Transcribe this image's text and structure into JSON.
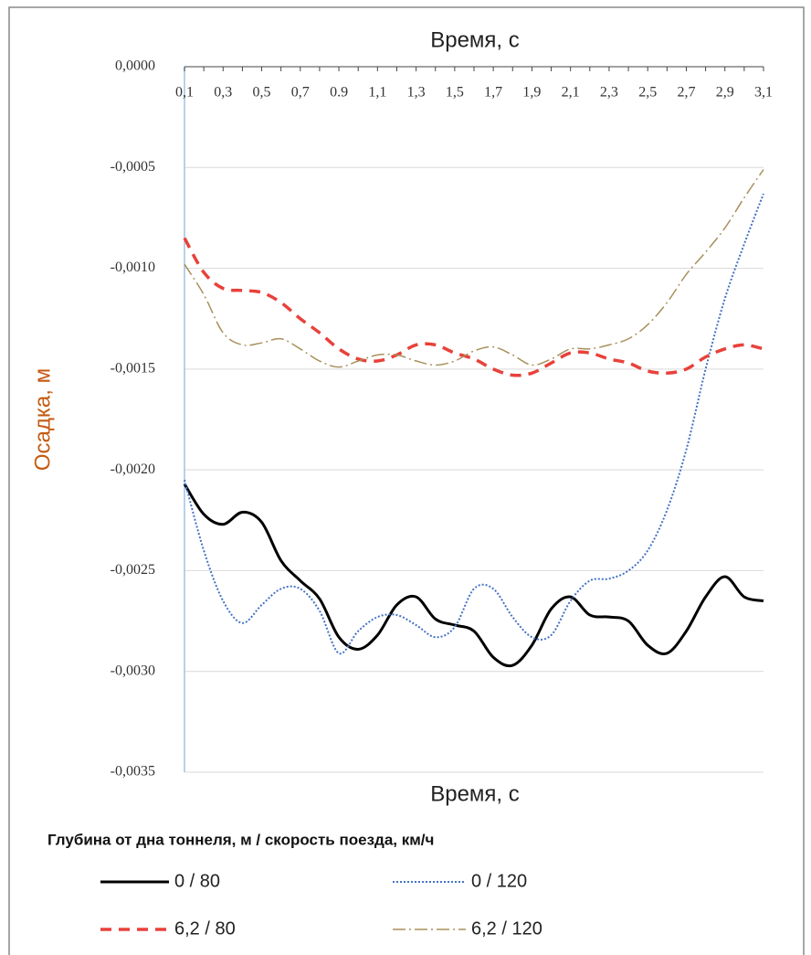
{
  "chart_data": {
    "type": "line",
    "title": "Время, с",
    "xlabel": "Время, с",
    "ylabel": "Осадка, м",
    "legend_title": "Глубина от дна тоннеля, м / скорость поезда, км/ч",
    "categories": [
      "0,1",
      null,
      "0,3",
      null,
      "0,5",
      null,
      "0,7",
      null,
      "0.9",
      null,
      "1,1",
      null,
      "1,3",
      null,
      "1,5",
      null,
      "1,7",
      null,
      "1,9",
      null,
      "2,1",
      null,
      "2,3",
      null,
      "2,5",
      null,
      "2,7",
      null,
      "2,9",
      null,
      "3,1"
    ],
    "ylim": [
      -0.0035,
      0
    ],
    "yticks": [
      {
        "value": 0,
        "label": "0,0000"
      },
      {
        "value": -0.0005,
        "label": "-0,0005"
      },
      {
        "value": -0.001,
        "label": "-0,0010"
      },
      {
        "value": -0.0015,
        "label": "-0,0015"
      },
      {
        "value": -0.002,
        "label": "-0,0020"
      },
      {
        "value": -0.0025,
        "label": "-0,0025"
      },
      {
        "value": -0.003,
        "label": "-0,0030"
      },
      {
        "value": -0.0035,
        "label": "-0,0035"
      }
    ],
    "grid": true,
    "series": [
      {
        "name": "0 / 80",
        "color": "#000000",
        "dash": "solid",
        "values": [
          -0.00207,
          -0.00222,
          -0.00227,
          -0.00221,
          -0.00226,
          -0.00245,
          -0.00255,
          -0.00264,
          -0.00283,
          -0.00289,
          -0.00282,
          -0.00267,
          -0.00263,
          -0.00274,
          -0.00277,
          -0.0028,
          -0.00293,
          -0.00297,
          -0.00287,
          -0.00269,
          -0.00263,
          -0.00272,
          -0.00273,
          -0.00275,
          -0.00287,
          -0.00291,
          -0.0028,
          -0.00263,
          -0.00253,
          -0.00263,
          -0.00265
        ]
      },
      {
        "name": "0 / 120",
        "color": "#4472c4",
        "dash": "dotted",
        "values": [
          -0.00205,
          -0.0024,
          -0.00265,
          -0.00276,
          -0.00267,
          -0.00259,
          -0.00259,
          -0.0027,
          -0.00291,
          -0.0028,
          -0.00273,
          -0.00272,
          -0.00277,
          -0.00283,
          -0.00278,
          -0.00259,
          -0.00259,
          -0.00273,
          -0.00283,
          -0.00282,
          -0.00265,
          -0.00255,
          -0.00254,
          -0.0025,
          -0.0024,
          -0.0022,
          -0.0019,
          -0.0015,
          -0.00115,
          -0.00088,
          -0.00063
        ]
      },
      {
        "name": "6,2 / 80",
        "color": "#e8413a",
        "dash": "dashed",
        "values": [
          -0.00085,
          -0.00102,
          -0.0011,
          -0.00111,
          -0.00112,
          -0.00117,
          -0.00125,
          -0.00132,
          -0.0014,
          -0.00145,
          -0.00146,
          -0.00143,
          -0.00138,
          -0.00138,
          -0.00142,
          -0.00145,
          -0.0015,
          -0.00153,
          -0.00152,
          -0.00147,
          -0.00142,
          -0.00142,
          -0.00145,
          -0.00147,
          -0.00151,
          -0.00152,
          -0.0015,
          -0.00144,
          -0.0014,
          -0.00138,
          -0.0014
        ]
      },
      {
        "name": "6,2 / 120",
        "color": "#a8905c",
        "dash": "dashdot",
        "values": [
          -0.00098,
          -0.00113,
          -0.00132,
          -0.00138,
          -0.00137,
          -0.00135,
          -0.0014,
          -0.00146,
          -0.00149,
          -0.00146,
          -0.00143,
          -0.00143,
          -0.00146,
          -0.00148,
          -0.00146,
          -0.00141,
          -0.00139,
          -0.00143,
          -0.00148,
          -0.00145,
          -0.0014,
          -0.0014,
          -0.00138,
          -0.00135,
          -0.00128,
          -0.00117,
          -0.00103,
          -0.00092,
          -0.0008,
          -0.00065,
          -0.00051
        ]
      }
    ]
  }
}
